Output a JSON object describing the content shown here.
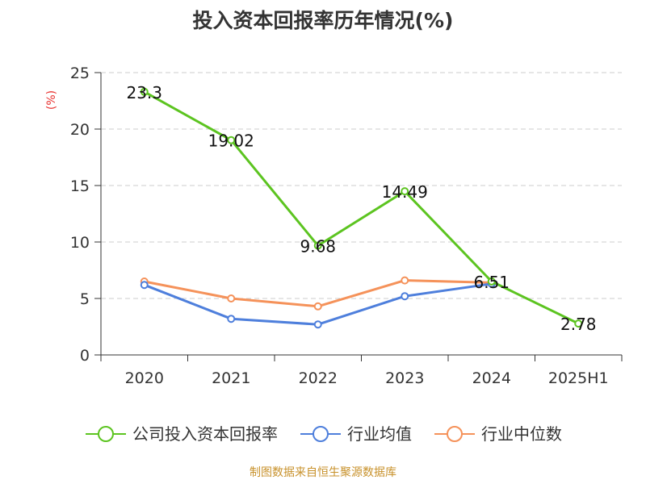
{
  "chart_data": {
    "type": "line",
    "title": "投入资本回报率历年情况(%)",
    "ylabel": "(%)",
    "xlabel": "",
    "ylim": [
      0,
      25
    ],
    "yticks": [
      0,
      5,
      10,
      15,
      20,
      25
    ],
    "categories": [
      "2020",
      "2021",
      "2022",
      "2023",
      "2024",
      "2025H1"
    ],
    "grid": true,
    "legend_position": "bottom",
    "series": [
      {
        "name": "公司投入资本回报率",
        "color": "#5cc420",
        "values": [
          23.3,
          19.02,
          9.68,
          14.49,
          6.51,
          2.78
        ],
        "labels": [
          "23.3",
          "19.02",
          "9.68",
          "14.49",
          "6.51",
          "2.78"
        ]
      },
      {
        "name": "行业均值",
        "color": "#4e7fdc",
        "values": [
          6.2,
          3.2,
          2.7,
          5.2,
          6.3,
          null
        ]
      },
      {
        "name": "行业中位数",
        "color": "#f5925a",
        "values": [
          6.5,
          5.0,
          4.3,
          6.6,
          6.4,
          null
        ]
      }
    ],
    "source": "制图数据来自恒生聚源数据库"
  }
}
